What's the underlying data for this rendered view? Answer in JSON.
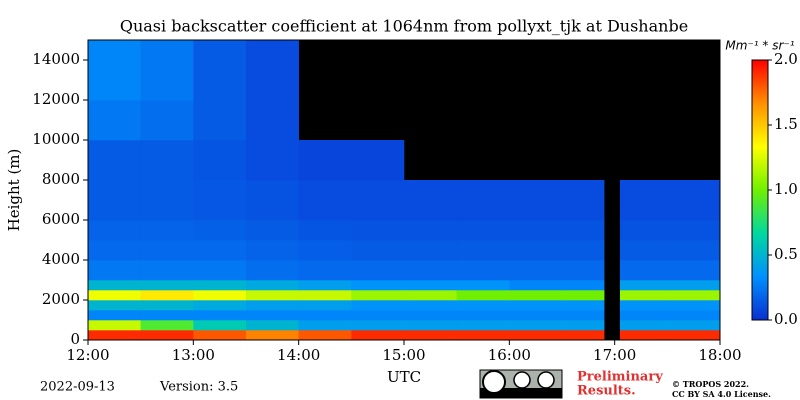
{
  "chart_data": {
    "type": "heatmap",
    "title": "Quasi backscatter coefficient at 1064nm from pollyxt_tjk at Dushanbe",
    "x_label": "UTC",
    "y_label": "Height (m)",
    "colorbar_label": "Mm⁻¹ * sr⁻¹",
    "xbins": [
      12,
      12.5,
      13,
      13.5,
      14,
      14.5,
      15,
      15.5,
      16,
      16.5,
      16.9,
      17.05,
      17.5,
      18
    ],
    "ybins": [
      0,
      500,
      1000,
      1500,
      2000,
      2500,
      3000,
      4000,
      5000,
      6000,
      8000,
      10000,
      12000,
      15000
    ],
    "z": [
      [
        1.9,
        1.9,
        1.8,
        1.7,
        1.8,
        1.9,
        1.9,
        1.9,
        1.9,
        1.9,
        null,
        1.9,
        1.9
      ],
      [
        1.2,
        0.9,
        0.6,
        0.5,
        0.4,
        0.4,
        0.4,
        0.4,
        0.4,
        0.4,
        null,
        0.4,
        0.4
      ],
      [
        0.3,
        0.3,
        0.3,
        0.3,
        0.3,
        0.3,
        0.3,
        0.3,
        0.3,
        0.3,
        null,
        0.3,
        0.3
      ],
      [
        0.5,
        0.5,
        0.45,
        0.4,
        0.4,
        0.35,
        0.35,
        0.35,
        0.35,
        0.35,
        null,
        0.35,
        0.35
      ],
      [
        1.3,
        1.4,
        1.3,
        1.2,
        1.2,
        1.1,
        1.1,
        1.0,
        1.0,
        1.0,
        null,
        1.1,
        1.1
      ],
      [
        0.5,
        0.5,
        0.5,
        0.45,
        0.4,
        0.35,
        0.35,
        0.35,
        0.3,
        0.3,
        null,
        0.4,
        0.4
      ],
      [
        0.25,
        0.25,
        0.25,
        0.22,
        0.2,
        0.2,
        0.2,
        0.2,
        0.2,
        0.2,
        null,
        0.2,
        0.2
      ],
      [
        0.2,
        0.2,
        0.2,
        0.18,
        0.16,
        0.15,
        0.15,
        0.15,
        0.15,
        0.15,
        null,
        0.15,
        0.15
      ],
      [
        0.18,
        0.18,
        0.17,
        0.15,
        0.13,
        0.12,
        0.12,
        0.12,
        0.12,
        0.12,
        null,
        0.12,
        0.12
      ],
      [
        0.15,
        0.15,
        0.14,
        0.12,
        0.1,
        0.1,
        0.1,
        0.1,
        0.1,
        0.1,
        null,
        0.1,
        0.1
      ],
      [
        0.15,
        0.15,
        0.13,
        0.1,
        0.08,
        0.08,
        null,
        null,
        null,
        null,
        null,
        null,
        null
      ],
      [
        0.25,
        0.22,
        0.15,
        0.1,
        null,
        null,
        null,
        null,
        null,
        null,
        null,
        null,
        null
      ],
      [
        0.3,
        0.25,
        0.15,
        0.1,
        null,
        null,
        null,
        null,
        null,
        null,
        null,
        null,
        null
      ]
    ],
    "xlim": [
      12,
      18
    ],
    "ylim": [
      0,
      15000
    ],
    "clim": [
      0,
      2
    ],
    "xticks": [
      {
        "value": 12,
        "label": "12:00"
      },
      {
        "value": 13,
        "label": "13:00"
      },
      {
        "value": 14,
        "label": "14:00"
      },
      {
        "value": 15,
        "label": "15:00"
      },
      {
        "value": 16,
        "label": "16:00"
      },
      {
        "value": 17,
        "label": "17:00"
      },
      {
        "value": 18,
        "label": "18:00"
      }
    ],
    "yticks": [
      0,
      2000,
      4000,
      6000,
      8000,
      10000,
      12000,
      14000
    ],
    "cticks": [
      {
        "value": 0,
        "label": "0.0"
      },
      {
        "value": 0.5,
        "label": "0.5"
      },
      {
        "value": 1,
        "label": "1.0"
      },
      {
        "value": 1.5,
        "label": "1.5"
      },
      {
        "value": 2,
        "label": "2.0"
      }
    ],
    "colormap": [
      "#0a2fd0",
      "#0090ff",
      "#00d8a0",
      "#70f000",
      "#ffff00",
      "#ff9000",
      "#ff0000"
    ],
    "background": "#000000",
    "date": "2022-09-13",
    "version": "Version: 3.5",
    "preliminary": [
      "Preliminary",
      "Results."
    ],
    "copyright": [
      "© TROPOS 2022.",
      "CC BY SA 4.0 License."
    ]
  }
}
